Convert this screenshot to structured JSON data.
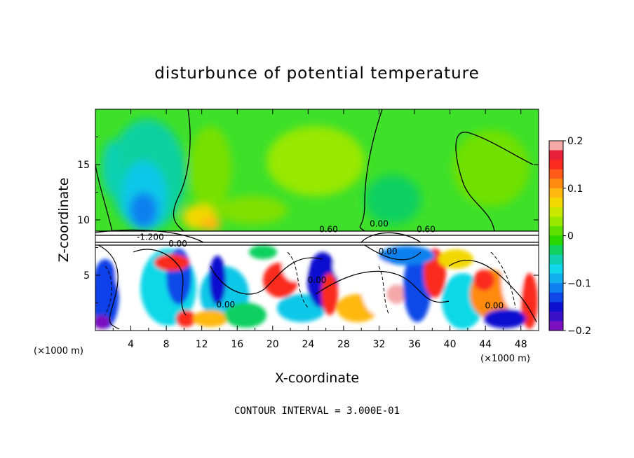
{
  "chart_data": {
    "type": "heatmap",
    "title": "disturbunce of potential temperature",
    "xlabel": "X-coordinate",
    "ylabel": "Z-coordinate",
    "x_unit": "(×1000 m)",
    "y_unit": "(×1000 m)",
    "xlim": [
      0,
      50
    ],
    "ylim": [
      0,
      20
    ],
    "x_ticks": [
      4,
      8,
      12,
      16,
      20,
      24,
      28,
      32,
      36,
      40,
      44,
      48
    ],
    "y_ticks": [
      5,
      10,
      15
    ],
    "colorbar": {
      "range": [
        -0.2,
        0.2
      ],
      "tick_labels": [
        "0.2",
        "0.1",
        "0",
        "−0.1",
        "−0.2"
      ],
      "tick_values": [
        0.2,
        0.1,
        0,
        -0.1,
        -0.2
      ],
      "colors": [
        "#f4a8a8",
        "#e8203a",
        "#fa2a1e",
        "#ff5a1a",
        "#ff8a10",
        "#ffb810",
        "#f2d800",
        "#c8e800",
        "#9ae800",
        "#60e000",
        "#28d800",
        "#10d060",
        "#10d0b0",
        "#10d8e8",
        "#10b0f0",
        "#1080f0",
        "#1048e8",
        "#1010d0",
        "#3a10c8",
        "#7a10c0"
      ]
    },
    "contour_interval": "CONTOUR INTERVAL = 3.000E-01",
    "contour_labels": [
      {
        "text": "0.60",
        "x": 26.3,
        "z": 8.9
      },
      {
        "text": "0.00",
        "x": 32.0,
        "z": 9.4
      },
      {
        "text": "0.60",
        "x": 37.3,
        "z": 8.9
      },
      {
        "text": "0.00",
        "x": 9.3,
        "z": 7.6
      },
      {
        "text": "-1.200",
        "x": 6.2,
        "z": 8.2
      },
      {
        "text": "0.00",
        "x": 33.0,
        "z": 6.9
      },
      {
        "text": "0.00",
        "x": 25.0,
        "z": 4.3
      },
      {
        "text": "0.00",
        "x": 14.7,
        "z": 2.1
      },
      {
        "text": "0.00",
        "x": 45.0,
        "z": 2.0
      }
    ]
  }
}
